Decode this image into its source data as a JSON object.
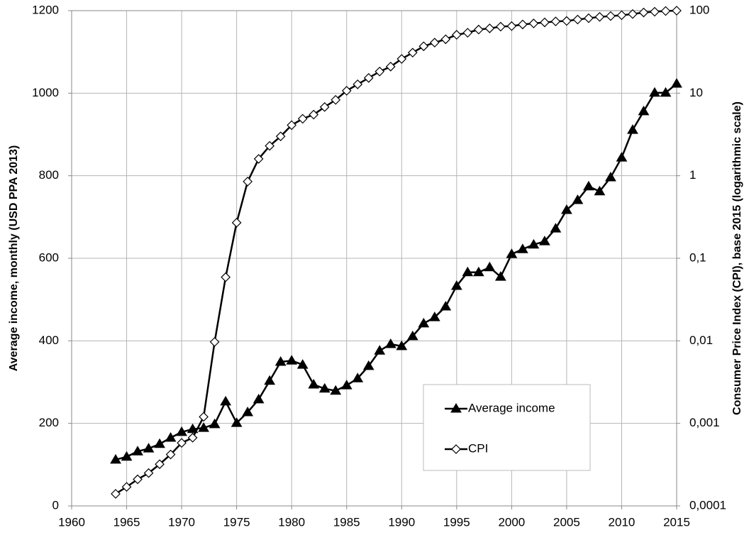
{
  "chart_data": {
    "type": "line",
    "x": [
      1964,
      1965,
      1966,
      1967,
      1968,
      1969,
      1970,
      1971,
      1972,
      1973,
      1974,
      1975,
      1976,
      1977,
      1978,
      1979,
      1980,
      1981,
      1982,
      1983,
      1984,
      1985,
      1986,
      1987,
      1988,
      1989,
      1990,
      1991,
      1992,
      1993,
      1994,
      1995,
      1996,
      1997,
      1998,
      1999,
      2000,
      2001,
      2002,
      2003,
      2004,
      2005,
      2006,
      2007,
      2008,
      2009,
      2010,
      2011,
      2012,
      2013,
      2014,
      2015
    ],
    "series": [
      {
        "name": "Average income",
        "color": "#000000",
        "marker": "triangle",
        "values": [
          112,
          119,
          132,
          139,
          150,
          165,
          179,
          186,
          189,
          198,
          253,
          201,
          227,
          258,
          303,
          349,
          352,
          342,
          294,
          284,
          279,
          292,
          309,
          339,
          376,
          392,
          387,
          411,
          442,
          457,
          483,
          533,
          566,
          566,
          578,
          555,
          610,
          622,
          633,
          641,
          672,
          717,
          741,
          774,
          762,
          796,
          844,
          911,
          956,
          1001,
          1001,
          1023
        ]
      },
      {
        "name": "CPI",
        "color": "#000000",
        "marker": "diamond",
        "axis": "y2",
        "values": [
          0.00014,
          0.00017,
          0.00021,
          0.00025,
          0.00032,
          0.00042,
          0.00058,
          0.00067,
          0.0012,
          0.0097,
          0.059,
          0.27,
          0.85,
          1.6,
          2.3,
          3.0,
          4.1,
          4.9,
          5.5,
          6.8,
          8.3,
          10.7,
          12.8,
          15.3,
          18.3,
          21,
          26,
          31,
          37,
          41,
          45,
          51,
          54,
          59,
          61,
          64,
          65,
          68,
          70,
          72,
          74,
          75,
          78,
          81,
          84,
          86,
          88,
          91,
          95,
          97,
          99,
          100
        ]
      }
    ],
    "ylabel": "Average income, monthly (USD PPA 2013)",
    "y2label": "Consumer Price Index (CPI), base 2015 (logarithmic scale)",
    "xlim": [
      1960,
      2015
    ],
    "xticks": [
      1960,
      1965,
      1970,
      1975,
      1980,
      1985,
      1990,
      1995,
      2000,
      2005,
      2010,
      2015
    ],
    "ylim": [
      0,
      1200
    ],
    "yticks": [
      0,
      200,
      400,
      600,
      800,
      1000,
      1200
    ],
    "y2lim": [
      0.0001,
      100
    ],
    "y2scale": "log",
    "y2ticks": [
      {
        "value": 0.0001,
        "label": "0,0001"
      },
      {
        "value": 0.001,
        "label": "0,001"
      },
      {
        "value": 0.01,
        "label": "0,01"
      },
      {
        "value": 0.1,
        "label": "0,1"
      },
      1,
      10,
      100
    ],
    "grid": true,
    "legend": "lower right"
  }
}
